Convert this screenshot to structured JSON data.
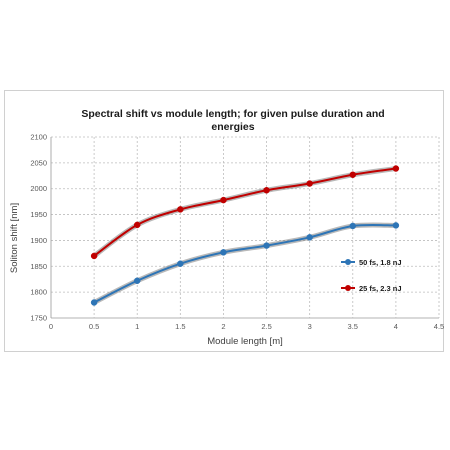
{
  "chart_data": {
    "type": "line",
    "title_lines": [
      "Spectral  shift vs module length; for given pulse duration  and",
      "energies"
    ],
    "xlabel": "Module length [m]",
    "ylabel": "Soliton shift [nm]",
    "xlim": [
      0,
      4.5
    ],
    "ylim": [
      1750,
      2100
    ],
    "x_ticks": [
      "0",
      "0.5",
      "1",
      "1.5",
      "2",
      "2.5",
      "3",
      "3.5",
      "4",
      "4.5"
    ],
    "y_ticks": [
      "1750",
      "1800",
      "1850",
      "1900",
      "1950",
      "2000",
      "2050",
      "2100"
    ],
    "grid": true,
    "legend_position": "right",
    "x": [
      0.5,
      1,
      1.5,
      2,
      2.5,
      3,
      3.5,
      4
    ],
    "series": [
      {
        "name": "50 fs, 1.8 nJ",
        "color": "#2e75b6",
        "values": [
          1780,
          1822,
          1855,
          1877,
          1890,
          1906,
          1928,
          1929
        ]
      },
      {
        "name": "25 fs, 2.3 nJ",
        "color": "#c00000",
        "values": [
          1870,
          1930,
          1960,
          1978,
          1997,
          2010,
          2027,
          2039
        ]
      }
    ]
  }
}
